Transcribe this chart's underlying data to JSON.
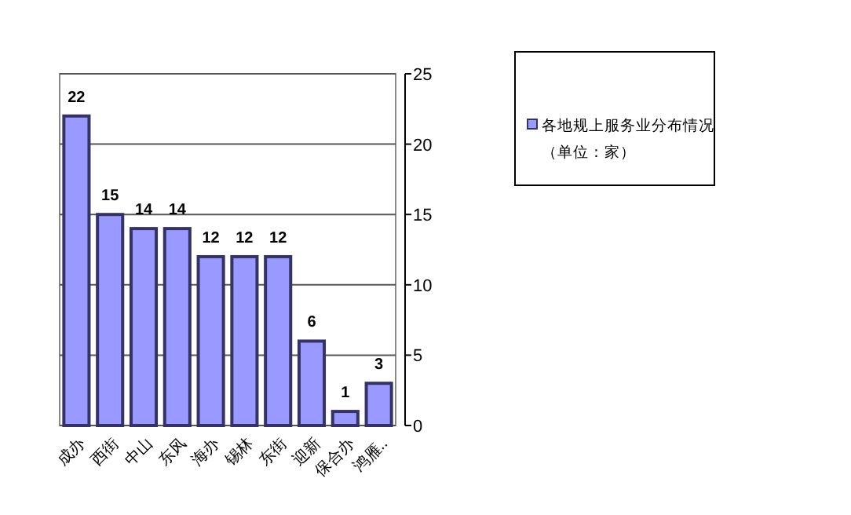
{
  "chart_data": {
    "type": "bar",
    "categories": [
      "成办",
      "西街",
      "中山",
      "东风",
      "海办",
      "锡林",
      "东街",
      "迎新",
      "保合办",
      "鸿雁.."
    ],
    "series": [
      {
        "name": "各地规上服务业分布情况（单位：家）",
        "color": "#9999ff",
        "values": [
          22,
          15,
          14,
          14,
          12,
          12,
          12,
          6,
          1,
          3
        ]
      }
    ],
    "ylim": [
      0,
      25
    ],
    "yticks": [
      0,
      5,
      10,
      15,
      20,
      25
    ],
    "grid": "y",
    "legend": "right",
    "data_labels": true
  }
}
